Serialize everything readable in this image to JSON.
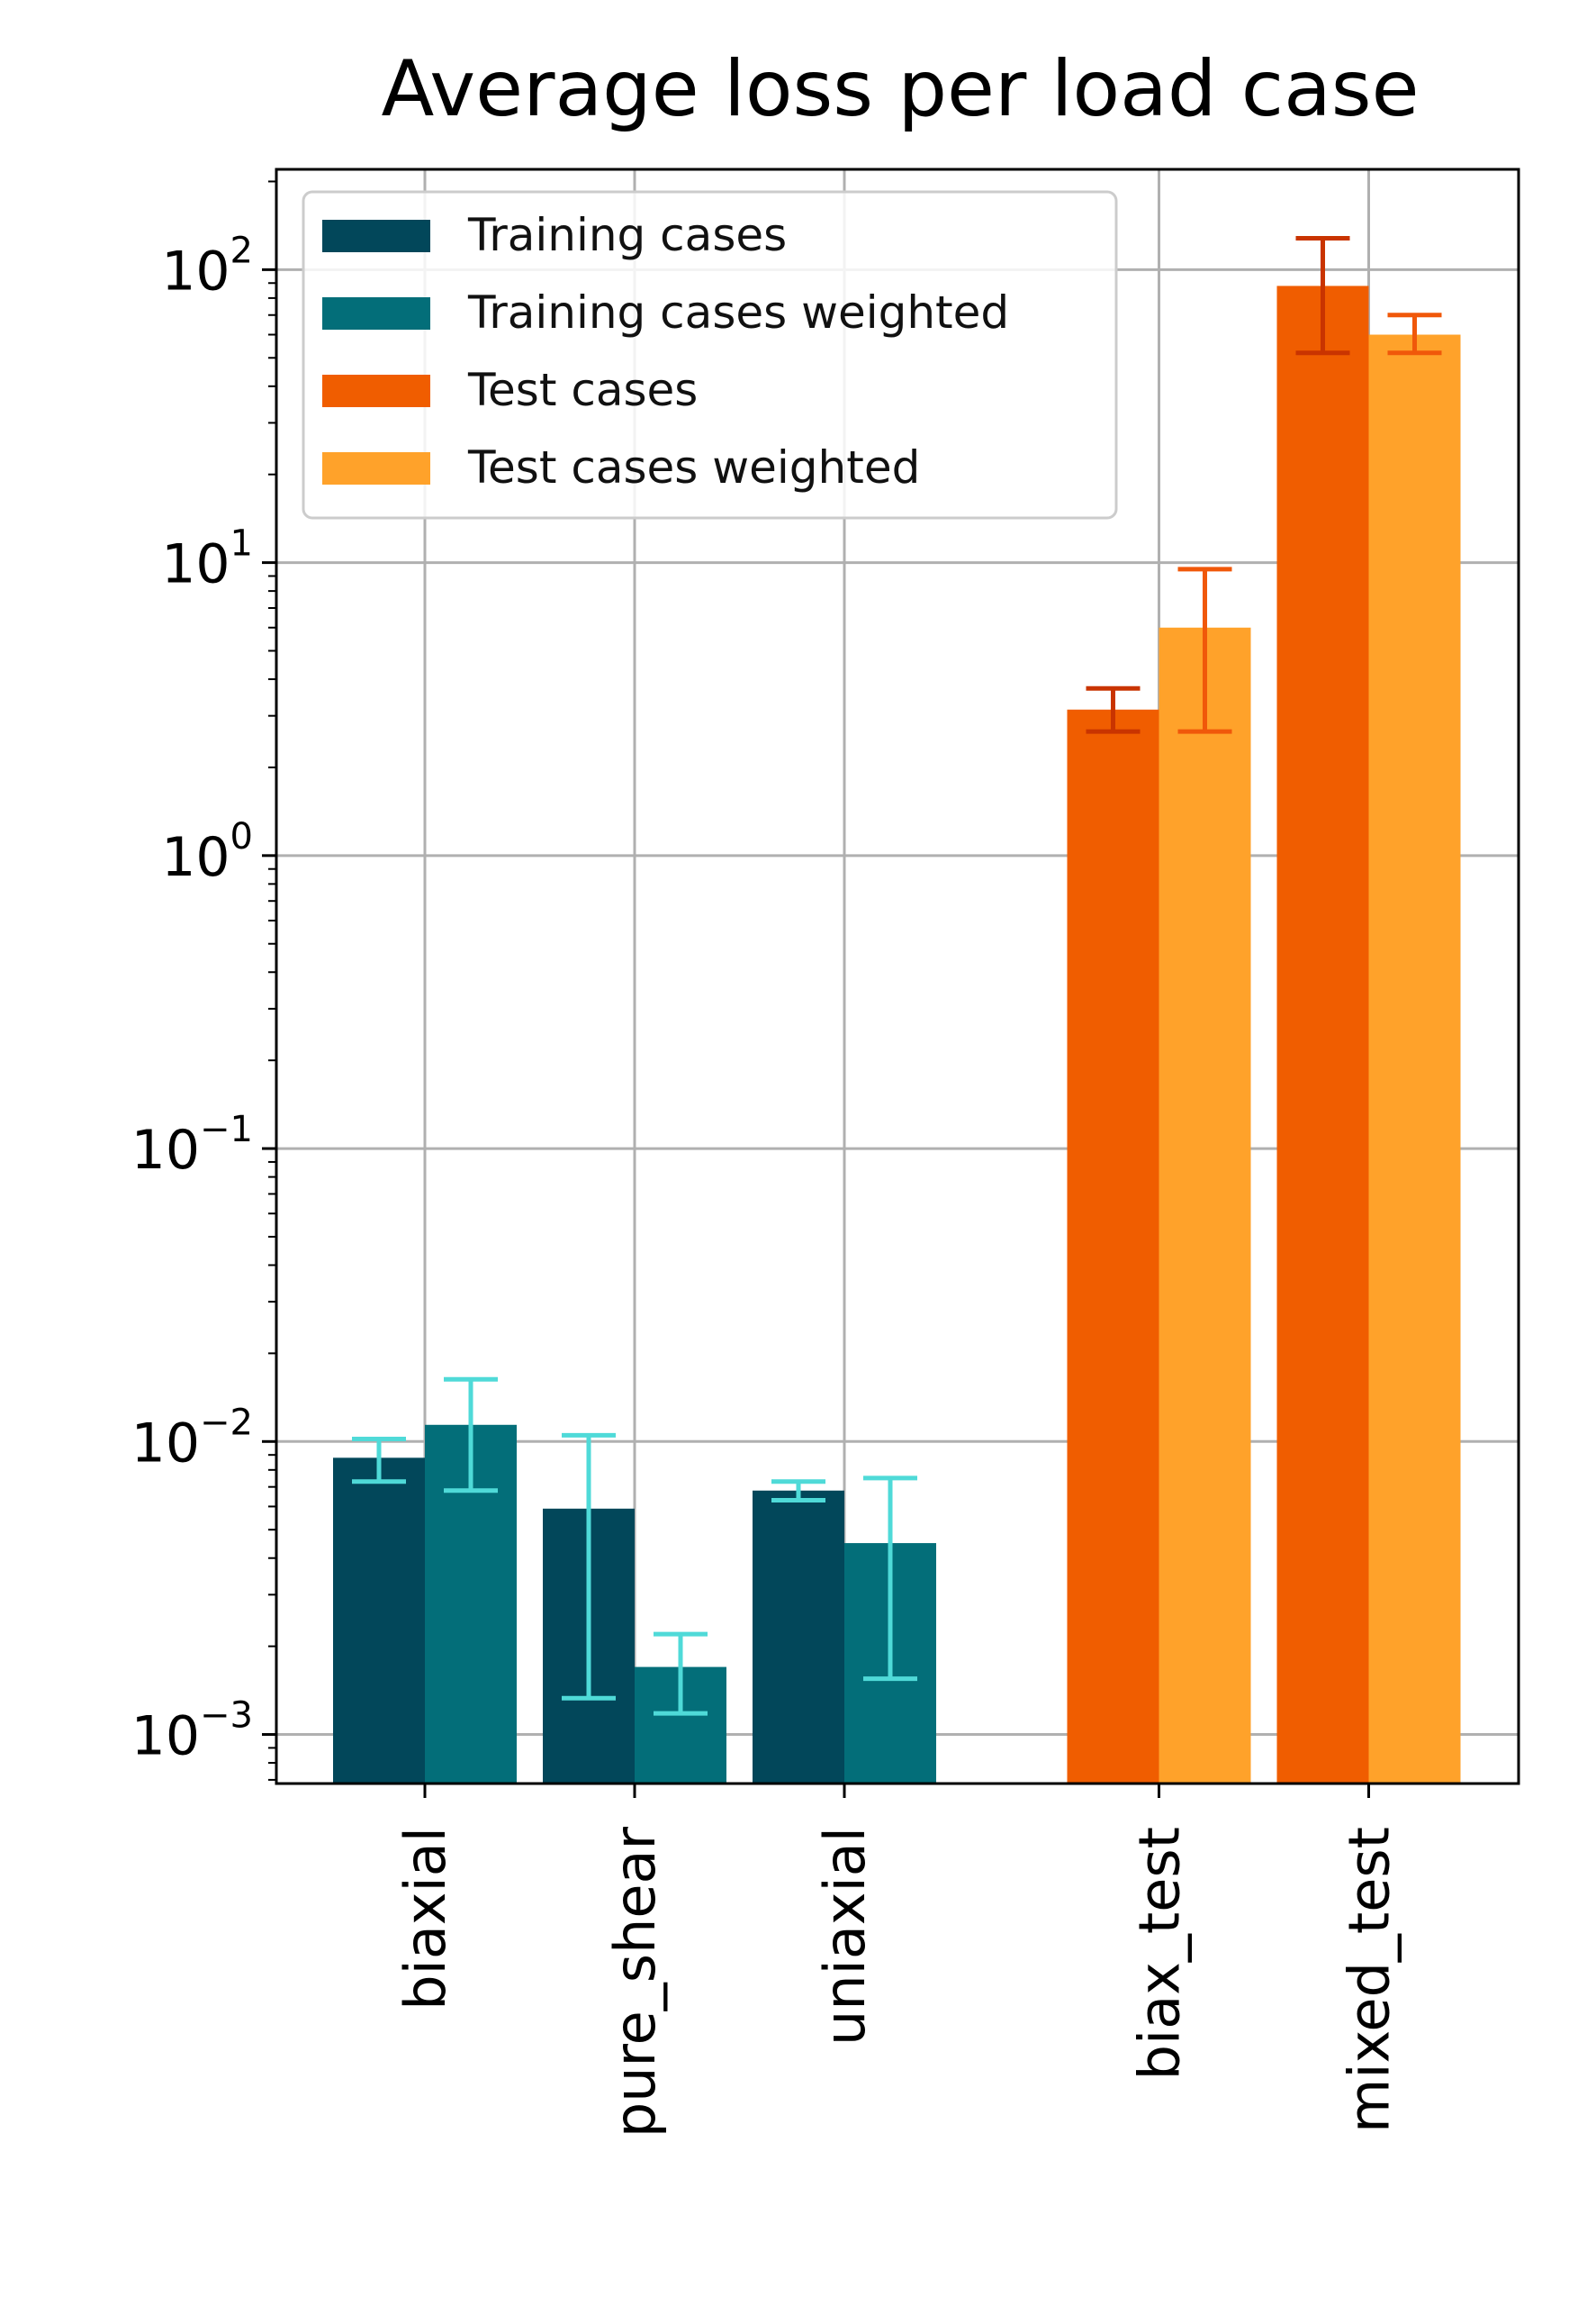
{
  "chart_data": {
    "type": "bar",
    "title": "Average loss per load case",
    "xlabel": "",
    "ylabel": "",
    "yscale": "log",
    "ylim": [
      0.00068,
      220
    ],
    "grid": true,
    "legend_position": "upper-left",
    "ytick_labels": [
      {
        "value": 0.001,
        "base": "10",
        "exp": "−3"
      },
      {
        "value": 0.01,
        "base": "10",
        "exp": "−2"
      },
      {
        "value": 0.1,
        "base": "10",
        "exp": "−1"
      },
      {
        "value": 1,
        "base": "10",
        "exp": "0"
      },
      {
        "value": 10,
        "base": "10",
        "exp": "1"
      },
      {
        "value": 100,
        "base": "10",
        "exp": "2"
      }
    ],
    "categories": [
      "biaxial",
      "pure_shear",
      "uniaxial",
      "biax_test",
      "mixed_test"
    ],
    "category_slots": [
      0,
      1,
      2,
      3.5,
      4.5
    ],
    "series": [
      {
        "name": "Training cases",
        "color": "#02475a",
        "error_color": "#4fdad8",
        "offset": -1,
        "values": [
          0.0088,
          0.0059,
          0.0068,
          null,
          null
        ],
        "error_low": [
          0.0073,
          0.00133,
          0.0063,
          null,
          null
        ],
        "error_high": [
          0.0102,
          0.0105,
          0.0073,
          null,
          null
        ]
      },
      {
        "name": "Training cases weighted",
        "color": "#036e79",
        "error_color": "#4fdad8",
        "offset": 0,
        "values": [
          0.0114,
          0.0017,
          0.0045,
          null,
          null
        ],
        "error_low": [
          0.0068,
          0.00118,
          0.00155,
          null,
          null
        ],
        "error_high": [
          0.0163,
          0.0022,
          0.0075,
          null,
          null
        ]
      },
      {
        "name": "Test cases",
        "color": "#f05d00",
        "error_color": "#c93400",
        "offset": -1,
        "values": [
          null,
          null,
          null,
          3.15,
          88
        ],
        "error_low": [
          null,
          null,
          null,
          2.65,
          52
        ],
        "error_high": [
          null,
          null,
          null,
          3.72,
          128
        ]
      },
      {
        "name": "Test cases weighted",
        "color": "#ffa22a",
        "error_color": "#f0580a",
        "offset": 0,
        "values": [
          null,
          null,
          null,
          6.0,
          60
        ],
        "error_low": [
          null,
          null,
          null,
          2.65,
          52
        ],
        "error_high": [
          null,
          null,
          null,
          9.5,
          70
        ]
      }
    ]
  }
}
